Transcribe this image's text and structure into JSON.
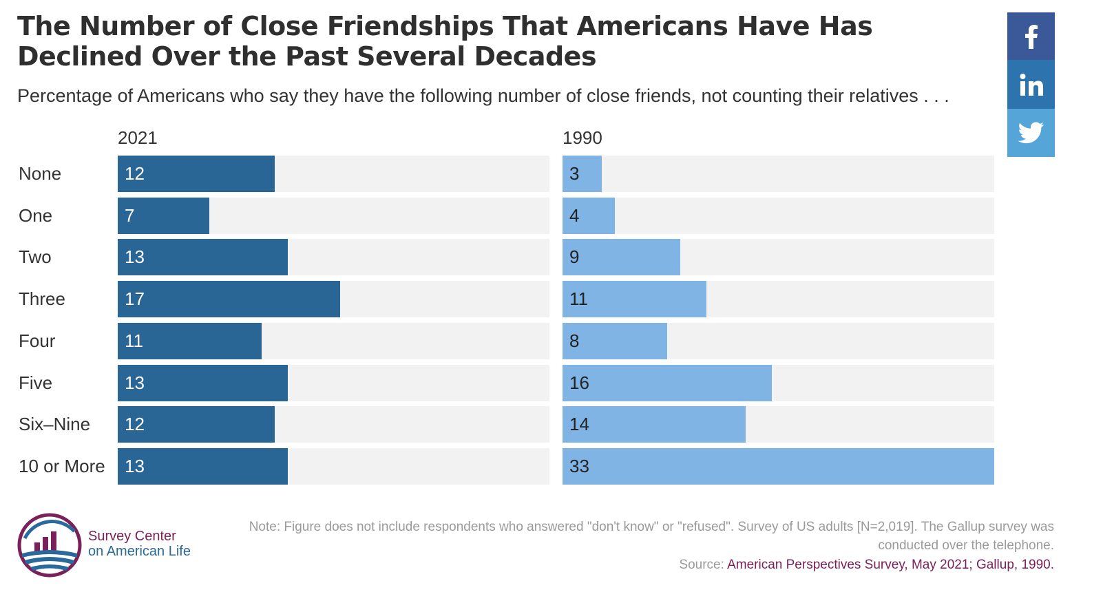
{
  "chart_data": {
    "type": "bar",
    "title": "The Number of Close Friendships That Americans Have Has Declined Over the Past Several Decades",
    "subtitle": "Percentage of Americans who say they have the following number of close friends, not counting their relatives . . .",
    "categories": [
      "None",
      "One",
      "Two",
      "Three",
      "Four",
      "Five",
      "Six–Nine",
      "10 or More"
    ],
    "series": [
      {
        "name": "2021",
        "values": [
          12,
          7,
          13,
          17,
          11,
          13,
          12,
          13
        ],
        "color": "#2a6695",
        "label_color": "#ffffff"
      },
      {
        "name": "1990",
        "values": [
          3,
          4,
          9,
          11,
          8,
          16,
          14,
          33
        ],
        "color": "#7fb4e5",
        "label_color": "#222222"
      }
    ],
    "xlim": [
      0,
      33
    ],
    "track_color": "#f2f2f2",
    "orientation": "horizontal",
    "legend": "none"
  },
  "social": {
    "facebook": {
      "icon": "facebook-icon",
      "color": "#3b5998"
    },
    "linkedin": {
      "icon": "linkedin-icon",
      "color": "#2d73ad"
    },
    "twitter": {
      "icon": "twitter-icon",
      "color": "#55a5d9"
    }
  },
  "footer": {
    "logo_line1": "Survey Center",
    "logo_line2": "on American Life",
    "note": "Note: Figure does not include respondents who answered \"don't know\" or \"refused\". Survey of US adults [N=2,019]. The Gallup survey was conducted over the telephone.",
    "source_prefix": "Source: ",
    "source_link": "American Perspectives Survey, May 2021; Gallup, 1990."
  }
}
